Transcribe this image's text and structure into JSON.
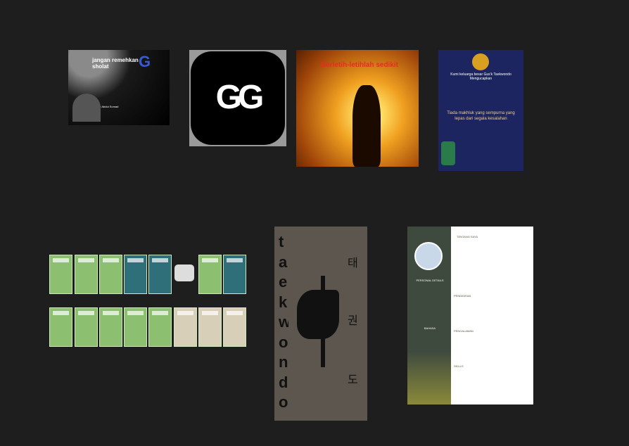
{
  "canvas": {
    "frames": [
      {
        "title": "jangan remehkan sholat",
        "caption": "Ustadz Abdul Somad"
      },
      {
        "title": "GG"
      },
      {
        "title": "Berletih-letihlah sedikit"
      },
      {
        "title": "Kumi keluarga besar Gus'k Taekwondo Mengucapkan",
        "caption": "Tiada makhluk yang sempurna yang lepas dari segala kesalahan"
      },
      {
        "title": "taekwondo",
        "hangul": [
          "태",
          "권",
          "도"
        ]
      },
      {
        "sections": [
          "TENTANG SAYA",
          "PENDIDIKAN",
          "PENGALAMAN",
          "SKILLS",
          "PERSONAL DETAILS",
          "BAHASA"
        ]
      }
    ]
  }
}
